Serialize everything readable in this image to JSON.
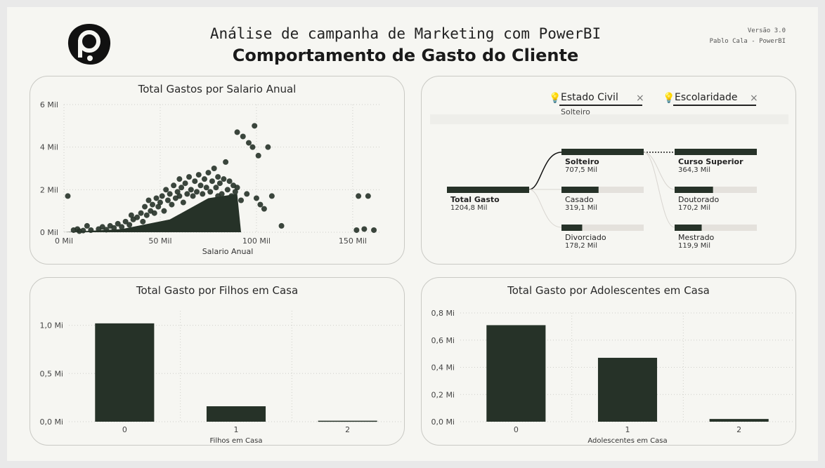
{
  "header": {
    "title": "Análise de campanha de Marketing com PowerBI",
    "subtitle": "Comportamento de Gasto do Cliente",
    "version": "Versão 3.0",
    "author": "Pablo Cala - PowerBI"
  },
  "colors": {
    "mark": "#263228",
    "bg": "#f6f6f2",
    "track": "#e4e1dc"
  },
  "decomposition": {
    "levels": [
      {
        "label": "Estado Civil",
        "value": "Solteiro"
      },
      {
        "label": "Escolaridade",
        "value": ""
      }
    ],
    "root": {
      "label": "Total Gasto",
      "value": "1204,8 Mil"
    },
    "estado_civil": [
      {
        "label": "Solteiro",
        "value": "707,5 Mil",
        "amount": 707.5
      },
      {
        "label": "Casado",
        "value": "319,1 Mil",
        "amount": 319.1
      },
      {
        "label": "Divorciado",
        "value": "178,2 Mil",
        "amount": 178.2
      }
    ],
    "escolaridade": [
      {
        "label": "Curso Superior",
        "value": "364,3 Mil",
        "amount": 364.3
      },
      {
        "label": "Doutorado",
        "value": "170,2 Mil",
        "amount": 170.2
      },
      {
        "label": "Mestrado",
        "value": "119,9 Mil",
        "amount": 119.9
      }
    ]
  },
  "chart_data": [
    {
      "type": "scatter",
      "title": "Total Gastos por Salario Anual",
      "xlabel": "Salario Anual",
      "ylabel": "",
      "xlim": [
        0,
        165000
      ],
      "ylim": [
        0,
        6000
      ],
      "x_ticks": [
        "0 Mil",
        "50 Mil",
        "100 Mil",
        "150 Mil"
      ],
      "x_tick_values": [
        0,
        50000,
        100000,
        150000
      ],
      "y_ticks": [
        "0 Mil",
        "2 Mil",
        "4 Mil",
        "6 Mil"
      ],
      "y_tick_values": [
        0,
        2000,
        4000,
        6000
      ],
      "grid": true,
      "points": [
        [
          2000,
          1700
        ],
        [
          5000,
          100
        ],
        [
          7000,
          150
        ],
        [
          8000,
          50
        ],
        [
          10000,
          80
        ],
        [
          12000,
          300
        ],
        [
          14000,
          100
        ],
        [
          18000,
          150
        ],
        [
          20000,
          250
        ],
        [
          22000,
          120
        ],
        [
          24000,
          300
        ],
        [
          26000,
          200
        ],
        [
          28000,
          400
        ],
        [
          30000,
          250
        ],
        [
          32000,
          500
        ],
        [
          34000,
          350
        ],
        [
          35000,
          800
        ],
        [
          36000,
          600
        ],
        [
          38000,
          700
        ],
        [
          40000,
          900
        ],
        [
          41000,
          500
        ],
        [
          42000,
          1200
        ],
        [
          43000,
          800
        ],
        [
          44000,
          1500
        ],
        [
          45000,
          1000
        ],
        [
          46000,
          1300
        ],
        [
          47000,
          900
        ],
        [
          48000,
          1600
        ],
        [
          49000,
          1200
        ],
        [
          50000,
          1400
        ],
        [
          51000,
          1700
        ],
        [
          52000,
          1000
        ],
        [
          53000,
          2000
        ],
        [
          54000,
          1500
        ],
        [
          55000,
          1800
        ],
        [
          56000,
          1300
        ],
        [
          57000,
          2200
        ],
        [
          58000,
          1600
        ],
        [
          59000,
          1900
        ],
        [
          60000,
          2500
        ],
        [
          60000,
          1700
        ],
        [
          61000,
          2100
        ],
        [
          62000,
          1400
        ],
        [
          63000,
          2300
        ],
        [
          64000,
          1800
        ],
        [
          65000,
          2600
        ],
        [
          66000,
          2000
        ],
        [
          67000,
          1700
        ],
        [
          68000,
          2400
        ],
        [
          69000,
          1900
        ],
        [
          70000,
          2700
        ],
        [
          71000,
          2200
        ],
        [
          72000,
          1800
        ],
        [
          73000,
          2500
        ],
        [
          74000,
          2100
        ],
        [
          75000,
          2800
        ],
        [
          76000,
          1900
        ],
        [
          77000,
          2400
        ],
        [
          78000,
          3000
        ],
        [
          79000,
          2100
        ],
        [
          80000,
          2600
        ],
        [
          80000,
          1700
        ],
        [
          81000,
          2300
        ],
        [
          82000,
          1800
        ],
        [
          83000,
          2500
        ],
        [
          84000,
          3300
        ],
        [
          85000,
          2000
        ],
        [
          86000,
          2400
        ],
        [
          87000,
          1700
        ],
        [
          88000,
          2200
        ],
        [
          89000,
          1900
        ],
        [
          90000,
          2100
        ],
        [
          90000,
          4700
        ],
        [
          92000,
          1500
        ],
        [
          93000,
          4500
        ],
        [
          95000,
          1800
        ],
        [
          96000,
          4200
        ],
        [
          98000,
          4000
        ],
        [
          99000,
          5000
        ],
        [
          100000,
          1600
        ],
        [
          101000,
          3600
        ],
        [
          102000,
          1300
        ],
        [
          104000,
          1100
        ],
        [
          106000,
          4000
        ],
        [
          108000,
          1700
        ],
        [
          113000,
          300
        ],
        [
          152000,
          100
        ],
        [
          156000,
          150
        ],
        [
          153000,
          1700
        ],
        [
          158000,
          1700
        ],
        [
          161000,
          100
        ]
      ]
    },
    {
      "type": "bar",
      "title": "Total Gasto por Filhos em Casa",
      "xlabel": "Filhos em Casa",
      "ylabel": "",
      "categories": [
        "0",
        "1",
        "2"
      ],
      "values": [
        1.02,
        0.16,
        0.01
      ],
      "ylim": [
        0,
        1.15
      ],
      "y_ticks": [
        "0,0 Mi",
        "0,5 Mi",
        "1,0 Mi"
      ],
      "y_tick_values": [
        0,
        0.5,
        1.0
      ],
      "grid": true
    },
    {
      "type": "bar",
      "title": "Total Gasto por Adolescentes em Casa",
      "xlabel": "Adolescentes em Casa",
      "ylabel": "",
      "categories": [
        "0",
        "1",
        "2"
      ],
      "values": [
        0.71,
        0.47,
        0.02
      ],
      "ylim": [
        0,
        0.8
      ],
      "y_ticks": [
        "0,0 Mi",
        "0,2 Mi",
        "0,4 Mi",
        "0,6 Mi",
        "0,8 Mi"
      ],
      "y_tick_values": [
        0,
        0.2,
        0.4,
        0.6,
        0.8
      ],
      "grid": true
    }
  ]
}
